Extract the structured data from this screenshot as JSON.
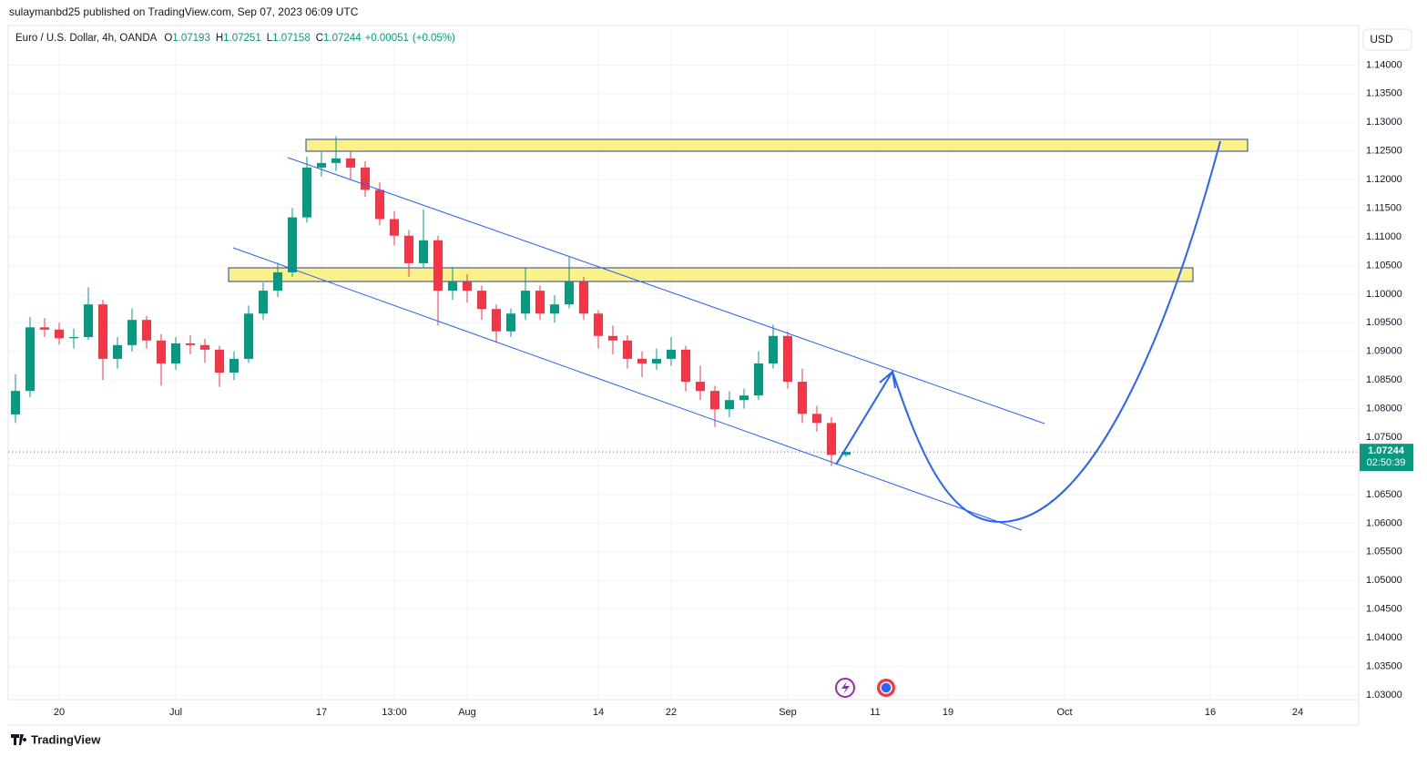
{
  "publisher": "sulaymanbd25 published on TradingView.com, Sep 07, 2023 06:09 UTC",
  "footer": "TradingView",
  "chart_data": {
    "type": "candlestick",
    "symbol": "Euro / U.S. Dollar, 4h, OANDA",
    "ohlc_labels": [
      "O",
      "H",
      "L",
      "C"
    ],
    "change": "+0.00051",
    "change_pct": "(+0.05%)",
    "currency": "USD",
    "countdown": "02:50:39",
    "up_color": "#089981",
    "down_color": "#f23645",
    "grid": true,
    "ylim": [
      1.0292,
      1.1469
    ],
    "yticks": [
      {
        "value": 1.03,
        "label": "1.03000"
      },
      {
        "value": 1.035,
        "label": "1.03500"
      },
      {
        "value": 1.04,
        "label": "1.04000"
      },
      {
        "value": 1.045,
        "label": "1.04500"
      },
      {
        "value": 1.05,
        "label": "1.05000"
      },
      {
        "value": 1.055,
        "label": "1.05500"
      },
      {
        "value": 1.06,
        "label": "1.06000"
      },
      {
        "value": 1.065,
        "label": "1.06500"
      },
      {
        "value": 1.07,
        "label": "1.07000"
      },
      {
        "value": 1.075,
        "label": "1.07500"
      },
      {
        "value": 1.08,
        "label": "1.08000"
      },
      {
        "value": 1.085,
        "label": "1.08500"
      },
      {
        "value": 1.09,
        "label": "1.09000"
      },
      {
        "value": 1.095,
        "label": "1.09500"
      },
      {
        "value": 1.1,
        "label": "1.10000"
      },
      {
        "value": 1.105,
        "label": "1.10500"
      },
      {
        "value": 1.11,
        "label": "1.11000"
      },
      {
        "value": 1.115,
        "label": "1.11500"
      },
      {
        "value": 1.12,
        "label": "1.12000"
      },
      {
        "value": 1.125,
        "label": "1.12500"
      },
      {
        "value": 1.13,
        "label": "1.13000"
      },
      {
        "value": 1.135,
        "label": "1.13500"
      },
      {
        "value": 1.14,
        "label": "1.14000"
      }
    ],
    "categories": [
      null,
      null,
      null,
      "20",
      null,
      null,
      null,
      null,
      null,
      null,
      null,
      "Jul",
      null,
      null,
      null,
      null,
      null,
      null,
      null,
      null,
      null,
      "17",
      null,
      null,
      null,
      null,
      "13:00",
      null,
      null,
      null,
      null,
      "Aug",
      null,
      null,
      null,
      null,
      null,
      null,
      null,
      null,
      "14",
      null,
      null,
      null,
      null,
      "22",
      null,
      null,
      null,
      null,
      null,
      null,
      null,
      "Sep",
      null,
      null,
      null,
      null,
      null,
      "11",
      null,
      null,
      null,
      null,
      "19",
      null,
      null,
      null,
      null,
      null,
      null,
      null,
      "Oct",
      null,
      null,
      null,
      null,
      null,
      null,
      null,
      null,
      null,
      "16",
      null,
      null,
      null,
      null,
      null,
      "24",
      null,
      null,
      null,
      null
    ],
    "open": [
      1.079,
      1.0831,
      1.0942,
      1.0938,
      1.0923,
      1.0925,
      1.0982,
      1.0887,
      1.0911,
      1.0955,
      1.0919,
      1.0879,
      1.0914,
      1.0911,
      1.0903,
      1.0863,
      1.0887,
      1.0966,
      1.1006,
      1.1038,
      1.1134,
      1.1221,
      1.1229,
      1.1237,
      1.1221,
      1.1182,
      1.1131,
      1.1102,
      1.1054,
      1.1094,
      1.1006,
      1.1022,
      1.1006,
      1.0974,
      1.0935,
      1.0966,
      1.1006,
      1.0966,
      1.0982,
      1.1022,
      1.0966,
      1.0927,
      1.0919,
      1.0887,
      1.0879,
      1.0887,
      1.0903,
      1.0847,
      1.0831,
      1.0799,
      1.0815,
      1.0823,
      1.0879,
      1.0927,
      1.0847,
      1.0791,
      1.0775,
      1.07193,
      null,
      null,
      null,
      null,
      null,
      null,
      null,
      null,
      null,
      null,
      null,
      null,
      null,
      null,
      null,
      null,
      null,
      null,
      null,
      null,
      null,
      null,
      null,
      null,
      null,
      null,
      null,
      null,
      null,
      null,
      null,
      null,
      null,
      null,
      null
    ],
    "high": [
      1.086,
      1.096,
      1.0958,
      1.095,
      1.094,
      1.1012,
      1.099,
      1.0925,
      1.0975,
      1.0962,
      1.093,
      1.0925,
      1.0928,
      1.0922,
      1.091,
      1.09,
      1.098,
      1.102,
      1.1055,
      1.115,
      1.124,
      1.1248,
      1.1276,
      1.125,
      1.1232,
      1.1195,
      1.1145,
      1.1112,
      1.1148,
      1.1102,
      1.1048,
      1.1035,
      1.1015,
      1.0982,
      1.0975,
      1.1045,
      1.1015,
      1.0998,
      1.1065,
      1.103,
      1.0972,
      1.0945,
      1.0928,
      1.09,
      1.0905,
      1.0925,
      1.091,
      1.0875,
      1.084,
      1.083,
      1.0835,
      1.09,
      1.0947,
      1.0935,
      1.087,
      1.0805,
      1.0785,
      1.07251,
      null,
      null,
      null,
      null,
      null,
      null,
      null,
      null,
      null,
      null,
      null,
      null,
      null,
      null,
      null,
      null,
      null,
      null,
      null,
      null,
      null,
      null,
      null,
      null,
      null,
      null,
      null,
      null,
      null,
      null,
      null,
      null,
      null,
      null,
      null
    ],
    "low": [
      1.0775,
      1.082,
      1.0925,
      1.0912,
      1.0905,
      1.092,
      1.085,
      1.087,
      1.09,
      1.0905,
      1.084,
      1.0868,
      1.0895,
      1.088,
      1.0838,
      1.085,
      1.088,
      1.0955,
      1.0995,
      1.103,
      1.1125,
      1.1205,
      1.1215,
      1.12,
      1.117,
      1.112,
      1.1085,
      1.103,
      1.1045,
      1.0945,
      1.099,
      1.0985,
      1.0955,
      1.0915,
      1.0925,
      1.0955,
      1.0955,
      1.095,
      1.0975,
      1.0955,
      1.0905,
      1.0895,
      1.087,
      1.0855,
      1.0868,
      1.0875,
      1.083,
      1.0815,
      1.0768,
      1.0785,
      1.08,
      1.0815,
      1.087,
      1.0835,
      1.0775,
      1.076,
      1.07,
      1.07158,
      null,
      null,
      null,
      null,
      null,
      null,
      null,
      null,
      null,
      null,
      null,
      null,
      null,
      null,
      null,
      null,
      null,
      null,
      null,
      null,
      null,
      null,
      null,
      null,
      null,
      null,
      null,
      null,
      null,
      null,
      null,
      null,
      null,
      null,
      null
    ],
    "close": [
      1.0831,
      1.0942,
      1.0938,
      1.0923,
      1.0925,
      1.0982,
      1.0887,
      1.0911,
      1.0955,
      1.0919,
      1.0879,
      1.0914,
      1.0911,
      1.0903,
      1.0863,
      1.0887,
      1.0966,
      1.1006,
      1.1038,
      1.1134,
      1.1221,
      1.1229,
      1.1237,
      1.1221,
      1.1182,
      1.1131,
      1.1102,
      1.1054,
      1.1094,
      1.1006,
      1.1022,
      1.1006,
      1.0974,
      1.0935,
      1.0966,
      1.1006,
      1.0966,
      1.0982,
      1.1022,
      1.0966,
      1.0927,
      1.0919,
      1.0887,
      1.0879,
      1.0887,
      1.0903,
      1.0847,
      1.0831,
      1.0799,
      1.0815,
      1.0823,
      1.0879,
      1.0927,
      1.0847,
      1.0791,
      1.0775,
      1.07193,
      1.07244,
      null,
      null,
      null,
      null,
      null,
      null,
      null,
      null,
      null,
      null,
      null,
      null,
      null,
      null,
      null,
      null,
      null,
      null,
      null,
      null,
      null,
      null,
      null,
      null,
      null,
      null,
      null,
      null,
      null,
      null,
      null,
      null,
      null,
      null,
      null
    ]
  }
}
